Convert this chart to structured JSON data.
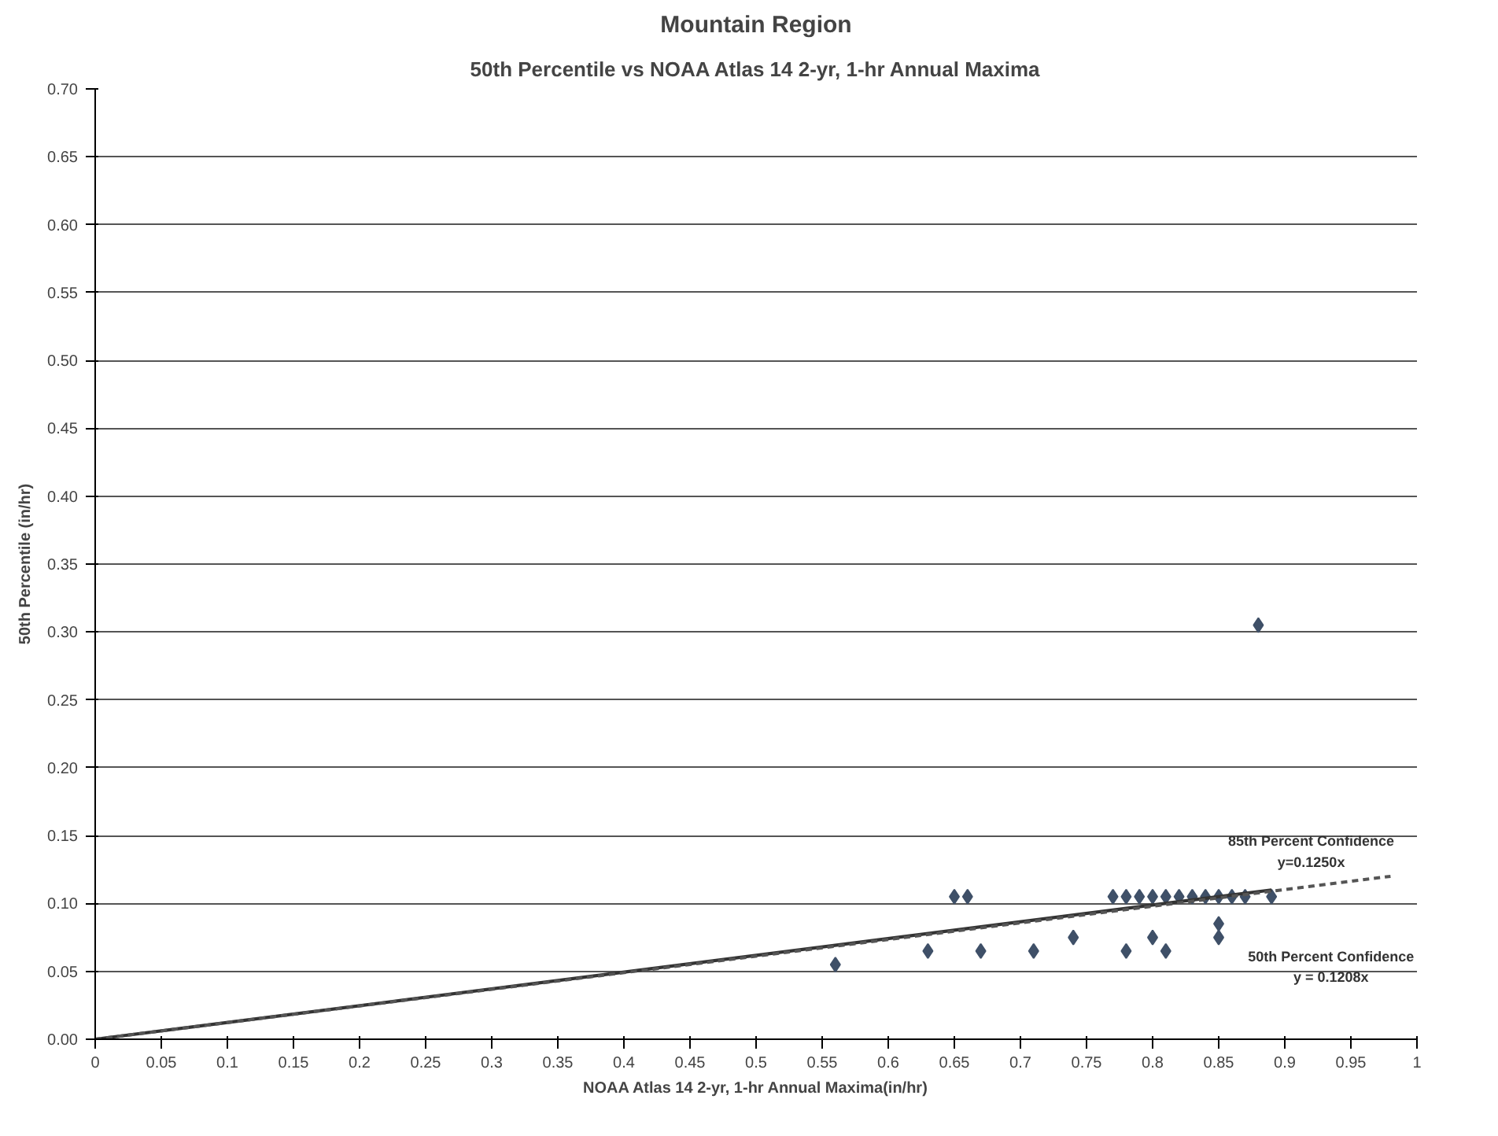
{
  "chart_data": {
    "type": "scatter",
    "title": "Mountain Region",
    "subtitle": "50th Percentile vs NOAA Atlas 14 2-yr, 1-hr Annual Maxima",
    "xlabel": "NOAA Atlas 14 2-yr, 1-hr Annual Maxima(in/hr)",
    "ylabel": "50th Percentile (in/hr)",
    "xlim": [
      0,
      1
    ],
    "xticks": [
      0,
      0.05,
      0.1,
      0.15,
      0.2,
      0.25,
      0.3,
      0.35,
      0.4,
      0.45,
      0.5,
      0.55,
      0.6,
      0.65,
      0.7,
      0.75,
      0.8,
      0.85,
      0.9,
      0.95,
      1
    ],
    "ylim": [
      0,
      0.7
    ],
    "yticks": [
      {
        "value": 0,
        "label": "0.00"
      },
      {
        "value": 0.05,
        "label": "0.05"
      },
      {
        "value": 0.1,
        "label": "0.10"
      },
      {
        "value": 0.15,
        "label": "0.15"
      },
      {
        "value": 0.2,
        "label": "0.20"
      },
      {
        "value": 0.25,
        "label": "0.25"
      },
      {
        "value": 0.3,
        "label": "0.30"
      },
      {
        "value": 0.35,
        "label": "0.35"
      },
      {
        "value": 0.4,
        "label": "0.40"
      },
      {
        "value": 0.45,
        "label": "0.45"
      },
      {
        "value": 0.5,
        "label": "0.50"
      },
      {
        "value": 0.55,
        "label": "0.55"
      },
      {
        "value": 0.6,
        "label": "0.60"
      },
      {
        "value": 0.65,
        "label": "0.65"
      },
      {
        "value": 0.7,
        "label": "0.70"
      }
    ],
    "grid": "y",
    "series": [
      {
        "marker": "diamond",
        "color": "#3f5068",
        "x": [
          0.56,
          0.63,
          0.65,
          0.66,
          0.67,
          0.71,
          0.74,
          0.77,
          0.78,
          0.79,
          0.8,
          0.81,
          0.82,
          0.83,
          0.84,
          0.85,
          0.86,
          0.87,
          0.89,
          0.78,
          0.8,
          0.81,
          0.85,
          0.85,
          0.88
        ],
        "values": [
          0.055,
          0.065,
          0.105,
          0.105,
          0.065,
          0.065,
          0.075,
          0.105,
          0.105,
          0.105,
          0.105,
          0.105,
          0.105,
          0.105,
          0.105,
          0.105,
          0.105,
          0.105,
          0.105,
          0.065,
          0.075,
          0.065,
          0.085,
          0.075,
          0.305
        ]
      },
      {
        "type": "line",
        "color": "#333333",
        "line_style": "solid",
        "x": [
          0,
          0.89
        ],
        "values": [
          0,
          0.11
        ]
      },
      {
        "type": "line",
        "color": "#555555",
        "line_style": "dashed",
        "x": [
          0,
          0.98
        ],
        "values": [
          0,
          0.12
        ]
      }
    ],
    "annotations": [
      "85th Percent Confidence",
      "y=0.1250x",
      "50th Percent Confidence",
      "y = 0.1208x"
    ]
  }
}
